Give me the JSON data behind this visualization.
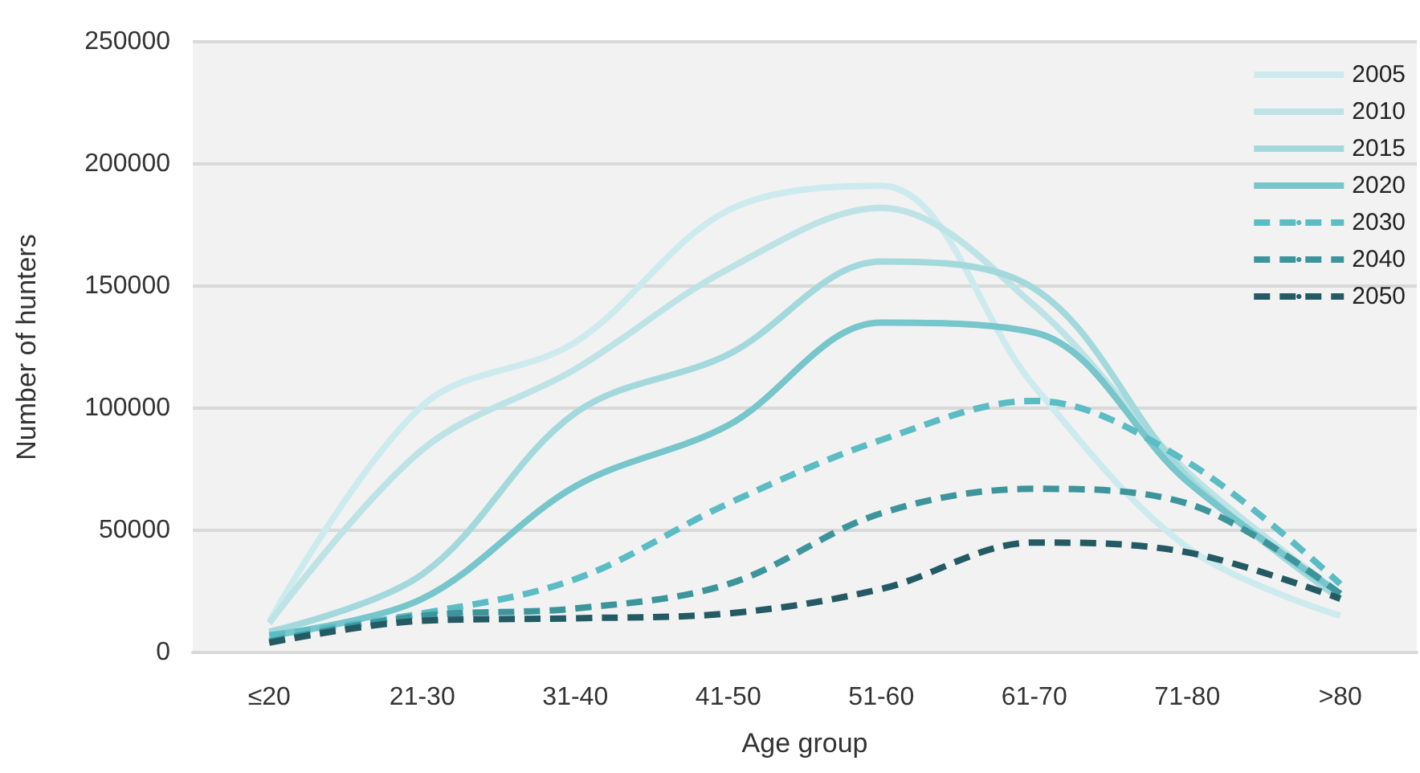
{
  "chart_data": {
    "type": "line",
    "xlabel": "Age group",
    "ylabel": "Number of hunters",
    "categories": [
      "≤20",
      "21-30",
      "31-40",
      "41-50",
      "51-60",
      "61-70",
      "71-80",
      ">80"
    ],
    "series": [
      {
        "name": "2005",
        "color": "#cdebee",
        "line_style": "solid",
        "values": [
          12500,
          101000,
          127000,
          181000,
          191000,
          109000,
          43000,
          15000
        ]
      },
      {
        "name": "2010",
        "color": "#bde3e6",
        "line_style": "solid",
        "values": [
          12000,
          83000,
          116000,
          157000,
          182000,
          142000,
          74000,
          24000
        ]
      },
      {
        "name": "2015",
        "color": "#a3d9dc",
        "line_style": "solid",
        "values": [
          8500,
          32000,
          98000,
          122000,
          160000,
          149000,
          72000,
          22000
        ]
      },
      {
        "name": "2020",
        "color": "#76c6cb",
        "line_style": "solid",
        "values": [
          7000,
          22000,
          68000,
          93000,
          135000,
          131000,
          70000,
          24000
        ]
      },
      {
        "name": "2030",
        "color": "#5bbcc4",
        "line_style": "dashed",
        "values": [
          7000,
          16000,
          30000,
          61000,
          87000,
          103000,
          78000,
          28000
        ]
      },
      {
        "name": "2040",
        "color": "#3d959c",
        "line_style": "dashed",
        "values": [
          4500,
          15000,
          18000,
          28000,
          57000,
          67000,
          61000,
          24000
        ]
      },
      {
        "name": "2050",
        "color": "#235a63",
        "line_style": "dashed",
        "values": [
          4000,
          13000,
          14000,
          16000,
          26000,
          45000,
          41000,
          22000
        ]
      }
    ],
    "ylim": [
      0,
      250000
    ],
    "yticks": [
      0,
      50000,
      100000,
      150000,
      200000,
      250000
    ],
    "grid": "y",
    "legend": "top right",
    "marker": "none"
  }
}
